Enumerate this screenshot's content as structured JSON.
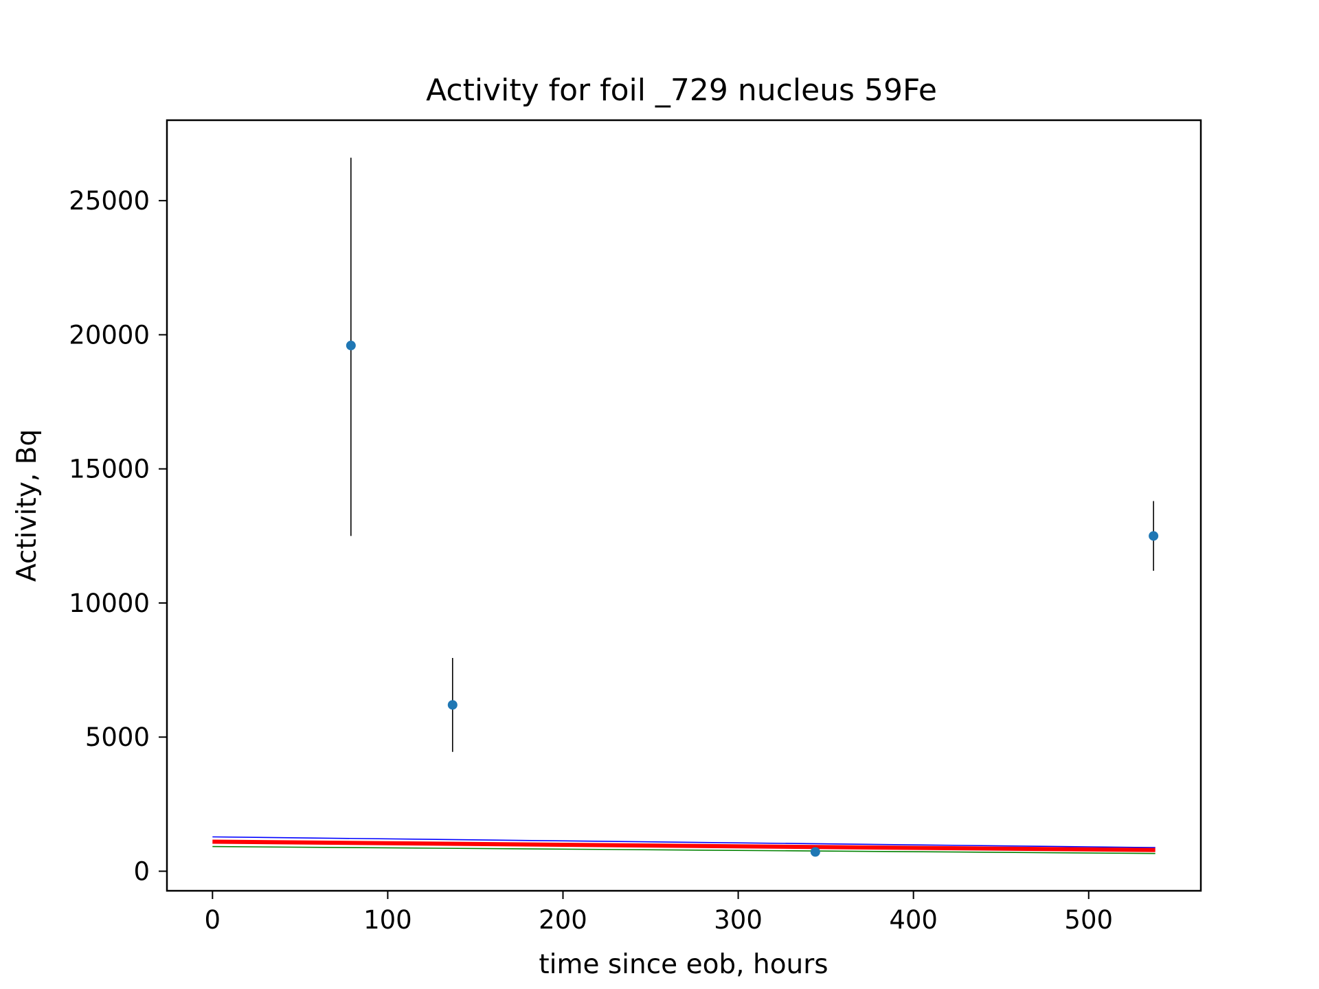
{
  "chart_data": {
    "type": "scatter",
    "title": "Activity for foil _729 nucleus 59Fe",
    "xlabel": "time since eob, hours",
    "ylabel": "Activity, Bq",
    "xlim": [
      -26,
      564
    ],
    "ylim": [
      -730,
      28000
    ],
    "xticks": [
      0,
      100,
      200,
      300,
      400,
      500
    ],
    "yticks": [
      0,
      5000,
      10000,
      15000,
      20000,
      25000
    ],
    "grid": false,
    "points": [
      {
        "x": 79,
        "y": 19600,
        "err_low": 12500,
        "err_high": 26600
      },
      {
        "x": 137,
        "y": 6200,
        "err_low": 4450,
        "err_high": 7950
      },
      {
        "x": 344,
        "y": 720,
        "err_low": 720,
        "err_high": 720
      },
      {
        "x": 537,
        "y": 12500,
        "err_low": 11200,
        "err_high": 13800
      }
    ],
    "point_color": "#1f77b4",
    "errorbar_color": "#000000",
    "fit_lines": [
      {
        "color": "#0000ff",
        "x": [
          0,
          538
        ],
        "y": [
          1280,
          880
        ]
      },
      {
        "color": "#ff0000",
        "x": [
          0,
          538
        ],
        "y": [
          1100,
          790
        ]
      },
      {
        "color": "#008000",
        "x": [
          0,
          538
        ],
        "y": [
          920,
          660
        ]
      }
    ]
  }
}
